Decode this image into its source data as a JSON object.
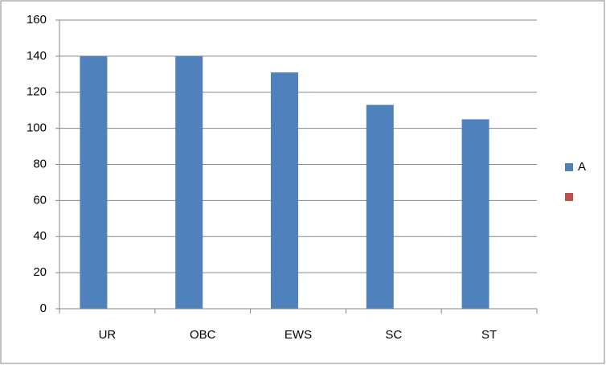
{
  "chart_data": {
    "type": "bar",
    "categories": [
      "UR",
      "OBC",
      "EWS",
      "SC",
      "ST"
    ],
    "series": [
      {
        "name": "A",
        "color": "#4f81bd",
        "values": [
          140,
          140,
          131,
          113,
          105
        ]
      },
      {
        "name": null,
        "color": "#c0504d",
        "values": [
          null,
          null,
          null,
          null,
          null
        ]
      }
    ],
    "ylim": [
      0,
      160
    ],
    "yticks": [
      0,
      20,
      40,
      60,
      80,
      100,
      120,
      140,
      160
    ],
    "grid": true,
    "legend": "right"
  }
}
